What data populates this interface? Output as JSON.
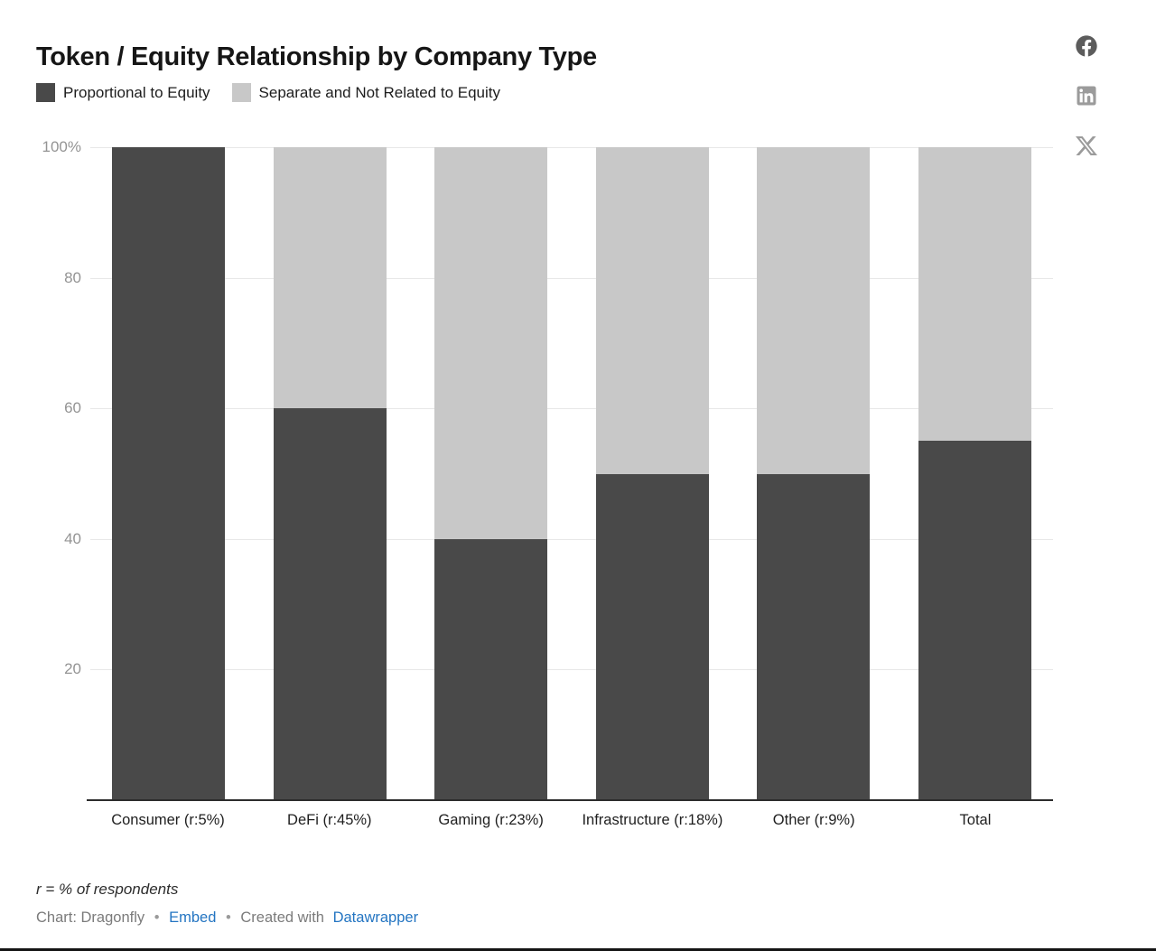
{
  "header": {
    "title": "Token / Equity Relationship by Company Type"
  },
  "legend": [
    {
      "label": "Proportional to Equity",
      "color": "#494949"
    },
    {
      "label": "Separate and Not Related to Equity",
      "color": "#c8c8c8"
    }
  ],
  "chart_data": {
    "type": "bar",
    "stacked": true,
    "title": "Token / Equity Relationship by Company Type",
    "categories": [
      "Consumer (r:5%)",
      "DeFi (r:45%)",
      "Gaming (r:23%)",
      "Infrastructure (r:18%)",
      "Other (r:9%)",
      "Total"
    ],
    "series": [
      {
        "name": "Proportional to Equity",
        "color": "#494949",
        "values": [
          100,
          60,
          40,
          50,
          50,
          55
        ]
      },
      {
        "name": "Separate and Not Related to Equity",
        "color": "#c8c8c8",
        "values": [
          0,
          40,
          60,
          50,
          50,
          45
        ]
      }
    ],
    "xlabel": "",
    "ylabel": "",
    "ylim": [
      0,
      100
    ],
    "yticks": [
      20,
      40,
      60,
      80,
      100
    ],
    "ytick_labels": [
      "20",
      "40",
      "60",
      "80",
      "100%"
    ],
    "grid": true,
    "legend_position": "top"
  },
  "share": {
    "facebook_label": "Share on Facebook",
    "linkedin_label": "Share on LinkedIn",
    "x_label": "Share on X"
  },
  "footer": {
    "note": "r = % of respondents",
    "credit": "Chart: Dragonfly",
    "separator": "•",
    "embed_label": "Embed",
    "created_with": "Created with",
    "datawrapper_label": "Datawrapper",
    "link_color": "#2475c2"
  }
}
